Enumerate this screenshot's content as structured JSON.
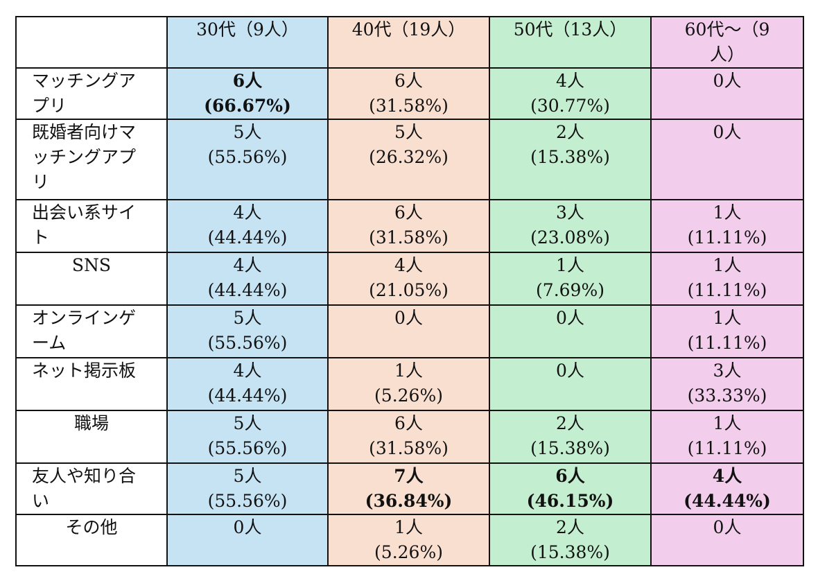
{
  "columns": [
    "30代（9人）",
    "40代（19人）",
    "50代（13人）",
    "60代～（9人）"
  ],
  "header_split": {
    "col4_line1": "60代～（9",
    "col4_line2": "人）"
  },
  "rows": [
    {
      "label": [
        "マッチングア",
        "プリ"
      ],
      "cells": [
        {
          "count": "6人",
          "pct": "(66.67%)",
          "bold": true
        },
        {
          "count": "6人",
          "pct": "(31.58%)"
        },
        {
          "count": "4人",
          "pct": "(30.77%)"
        },
        {
          "count": "0人",
          "pct": ""
        }
      ]
    },
    {
      "label": [
        "既婚者向けマ",
        "ッチングアプ",
        "リ"
      ],
      "cells": [
        {
          "count": "5人",
          "pct": "(55.56%)"
        },
        {
          "count": "5人",
          "pct": "(26.32%)"
        },
        {
          "count": "2人",
          "pct": "(15.38%)"
        },
        {
          "count": "0人",
          "pct": ""
        }
      ]
    },
    {
      "label": [
        "出会い系サイ",
        "ト"
      ],
      "cells": [
        {
          "count": "4人",
          "pct": "(44.44%)"
        },
        {
          "count": "6人",
          "pct": "(31.58%)"
        },
        {
          "count": "3人",
          "pct": "(23.08%)"
        },
        {
          "count": "1人",
          "pct": "(11.11%)"
        }
      ]
    },
    {
      "label": [
        "SNS"
      ],
      "center": true,
      "cells": [
        {
          "count": "4人",
          "pct": "(44.44%)"
        },
        {
          "count": "4人",
          "pct": "(21.05%)"
        },
        {
          "count": "1人",
          "pct": "(7.69%)"
        },
        {
          "count": "1人",
          "pct": "(11.11%)"
        }
      ]
    },
    {
      "label": [
        "オンラインゲ",
        "ーム"
      ],
      "cells": [
        {
          "count": "5人",
          "pct": "(55.56%)"
        },
        {
          "count": "0人",
          "pct": ""
        },
        {
          "count": "0人",
          "pct": ""
        },
        {
          "count": "1人",
          "pct": "(11.11%)"
        }
      ]
    },
    {
      "label": [
        "ネット掲示板"
      ],
      "cells": [
        {
          "count": "4人",
          "pct": "(44.44%)"
        },
        {
          "count": "1人",
          "pct": "(5.26%)"
        },
        {
          "count": "0人",
          "pct": ""
        },
        {
          "count": "3人",
          "pct": "(33.33%)"
        }
      ]
    },
    {
      "label": [
        "職場"
      ],
      "center": true,
      "cells": [
        {
          "count": "5人",
          "pct": "(55.56%)"
        },
        {
          "count": "6人",
          "pct": "(31.58%)"
        },
        {
          "count": "2人",
          "pct": "(15.38%)"
        },
        {
          "count": "1人",
          "pct": "(11.11%)"
        }
      ]
    },
    {
      "label": [
        "友人や知り合",
        "い"
      ],
      "cells": [
        {
          "count": "5人",
          "pct": "(55.56%)"
        },
        {
          "count": "7人",
          "pct": "(36.84%)",
          "bold": true
        },
        {
          "count": "6人",
          "pct": "(46.15%)",
          "bold": true
        },
        {
          "count": "4人",
          "pct": "(44.44%)",
          "bold": true
        }
      ]
    },
    {
      "label": [
        "その他"
      ],
      "center": true,
      "cells": [
        {
          "count": "0人",
          "pct": ""
        },
        {
          "count": "1人",
          "pct": "(5.26%)"
        },
        {
          "count": "2人",
          "pct": "(15.38%)"
        },
        {
          "count": "0人",
          "pct": ""
        }
      ]
    }
  ]
}
